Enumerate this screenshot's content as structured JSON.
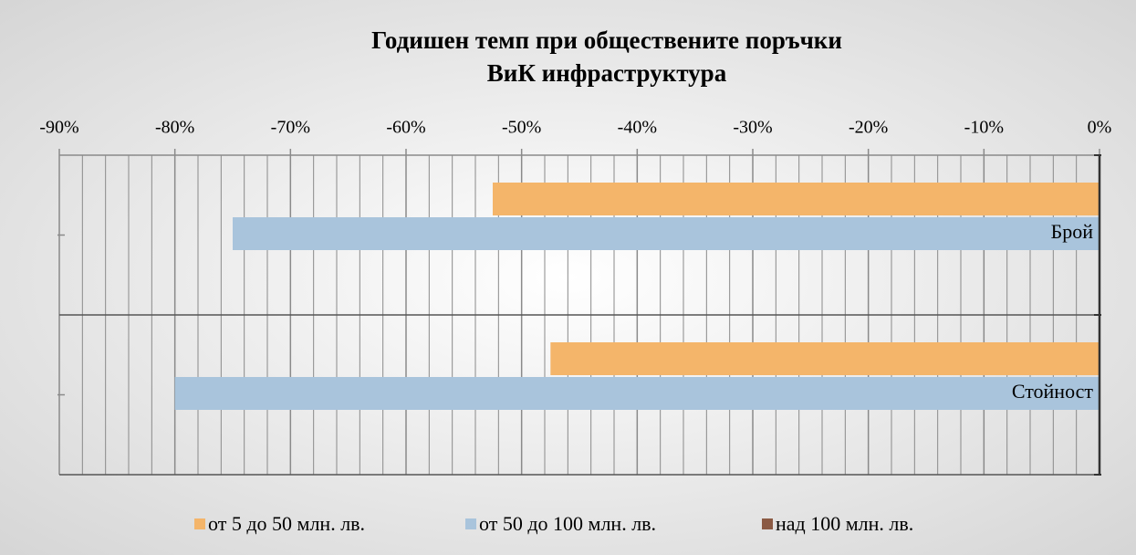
{
  "chart_data": {
    "type": "barh",
    "title": [
      "Годишен темп при обществените поръчки",
      "ВиК инфраструктура"
    ],
    "categories": [
      "Брой",
      "Стойност"
    ],
    "series": [
      {
        "name": "от 5 до 50 млн. лв.",
        "color": "#f4b56a",
        "values": [
          -52.5,
          -47.5
        ]
      },
      {
        "name": "от 50 до 100 млн. лв.",
        "color": "#a9c4dc",
        "values": [
          -75,
          -80
        ]
      },
      {
        "name": "над 100 млн. лв.",
        "color": "#8b5a44",
        "values": [
          0,
          0
        ]
      }
    ],
    "xlim": [
      -90,
      0
    ],
    "xticks": [
      {
        "value": -90,
        "label": "-90%"
      },
      {
        "value": -80,
        "label": "-80%"
      },
      {
        "value": -70,
        "label": "-70%"
      },
      {
        "value": -60,
        "label": "-60%"
      },
      {
        "value": -50,
        "label": "-50%"
      },
      {
        "value": -40,
        "label": "-40%"
      },
      {
        "value": -30,
        "label": "-30%"
      },
      {
        "value": -20,
        "label": "-20%"
      },
      {
        "value": -10,
        "label": "-10%"
      },
      {
        "value": 0,
        "label": "0%"
      }
    ],
    "grid": true,
    "legend": "bottom"
  }
}
